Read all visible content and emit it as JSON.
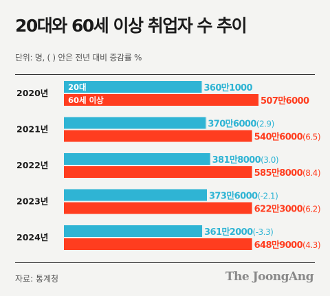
{
  "header": {
    "title": "20대와 60세 이상 취업자 수 추이",
    "subtitle": "단위: 명, ( ) 안은 전년 대비 증감률 %"
  },
  "footer": {
    "source": "자료: 통계청",
    "brand": "The JoongAng"
  },
  "colors": {
    "series_20s": "#2fb4d4",
    "series_60plus": "#ff3d1f",
    "background": "#f4f4f2"
  },
  "chart_data": {
    "type": "bar",
    "orientation": "horizontal",
    "title": "20대와 60세 이상 취업자 수 추이",
    "subtitle": "단위: 명, ( ) 안은 전년 대비 증감률 %",
    "categories": [
      "2020년",
      "2021년",
      "2022년",
      "2023년",
      "2024년"
    ],
    "xlim": [
      0,
      6489000
    ],
    "grid": false,
    "legend": "inside-first-group",
    "series": [
      {
        "name": "20대",
        "values": [
          3601000,
          3706000,
          3818000,
          3736000,
          3612000
        ],
        "value_labels": [
          "360만1000",
          "370만6000",
          "381만8000",
          "373만6000",
          "361만2000"
        ],
        "change_labels": [
          "",
          "(2.9)",
          "(3.0)",
          "(-2.1)",
          "(-3.3)"
        ]
      },
      {
        "name": "60세 이상",
        "values": [
          5076000,
          5406000,
          5858000,
          6223000,
          6489000
        ],
        "value_labels": [
          "507만6000",
          "540만6000",
          "585만8000",
          "622만3000",
          "648만9000"
        ],
        "change_labels": [
          "",
          "(6.5)",
          "(8.4)",
          "(6.2)",
          "(4.3)"
        ]
      }
    ]
  }
}
